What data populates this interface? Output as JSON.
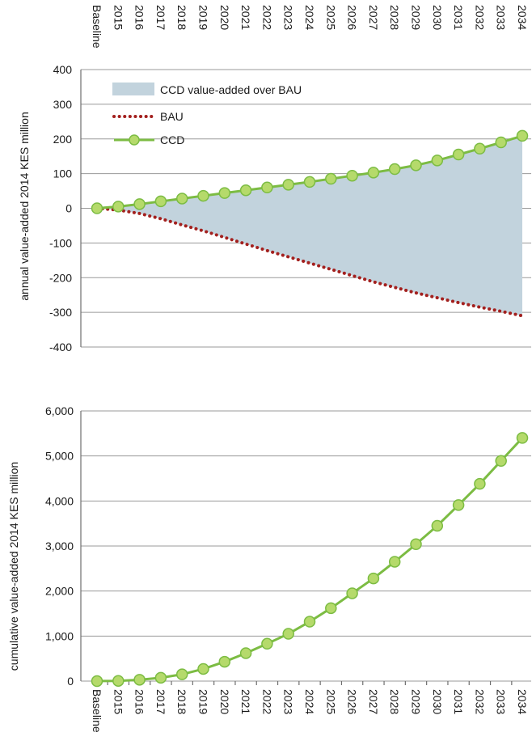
{
  "chart_data": [
    {
      "type": "area",
      "ylabel": "annual value-added 2014 KES million",
      "categories": [
        "Baseline",
        "2015",
        "2016",
        "2017",
        "2018",
        "2019",
        "2020",
        "2021",
        "2022",
        "2023",
        "2024",
        "2025",
        "2026",
        "2027",
        "2028",
        "2029",
        "2030",
        "2031",
        "2032",
        "2033",
        "2034"
      ],
      "ylim": [
        -400,
        400
      ],
      "yticks": [
        -400,
        -300,
        -200,
        -100,
        0,
        100,
        200,
        300,
        400
      ],
      "ytick_labels": [
        "-400",
        "-300",
        "-200",
        "-100",
        "0",
        "100",
        "200",
        "300",
        "400"
      ],
      "xaxis_labels_position": "top",
      "grid": true,
      "legend_position": "top-left",
      "area": {
        "name": "CCD value-added over BAU",
        "color": "#c2d3dd",
        "between": [
          "BAU",
          "CCD"
        ]
      },
      "series": [
        {
          "name": "BAU",
          "style": "dotted",
          "color": "#a3201e",
          "values": [
            0,
            -5,
            -15,
            -30,
            -48,
            -65,
            -84,
            -103,
            -122,
            -140,
            -158,
            -176,
            -194,
            -212,
            -228,
            -244,
            -258,
            -272,
            -285,
            -297,
            -310
          ]
        },
        {
          "name": "CCD",
          "style": "line-markers",
          "color": "#7cbc43",
          "marker_color": "#b5da6b",
          "values": [
            0,
            5,
            12,
            20,
            28,
            36,
            44,
            52,
            60,
            68,
            76,
            85,
            94,
            103,
            113,
            124,
            138,
            155,
            172,
            190,
            209
          ]
        }
      ]
    },
    {
      "type": "line",
      "ylabel": "cumulative value-added 2014 KES million",
      "categories": [
        "Baseline",
        "2015",
        "2016",
        "2017",
        "2018",
        "2019",
        "2020",
        "2021",
        "2022",
        "2023",
        "2024",
        "2025",
        "2026",
        "2027",
        "2028",
        "2029",
        "2030",
        "2031",
        "2032",
        "2033",
        "2034"
      ],
      "ylim": [
        0,
        6000
      ],
      "yticks": [
        0,
        1000,
        2000,
        3000,
        4000,
        5000,
        6000
      ],
      "ytick_labels": [
        "0",
        "1,000",
        "2,000",
        "3,000",
        "4,000",
        "5,000",
        "6,000"
      ],
      "xaxis_labels_position": "bottom",
      "grid": true,
      "series": [
        {
          "name": "CCD",
          "style": "line-markers",
          "color": "#7cbc43",
          "marker_color": "#b5da6b",
          "values": [
            0,
            5,
            30,
            75,
            150,
            270,
            430,
            620,
            830,
            1050,
            1320,
            1620,
            1950,
            2280,
            2650,
            3040,
            3450,
            3910,
            4380,
            4890,
            5400
          ]
        }
      ]
    }
  ]
}
